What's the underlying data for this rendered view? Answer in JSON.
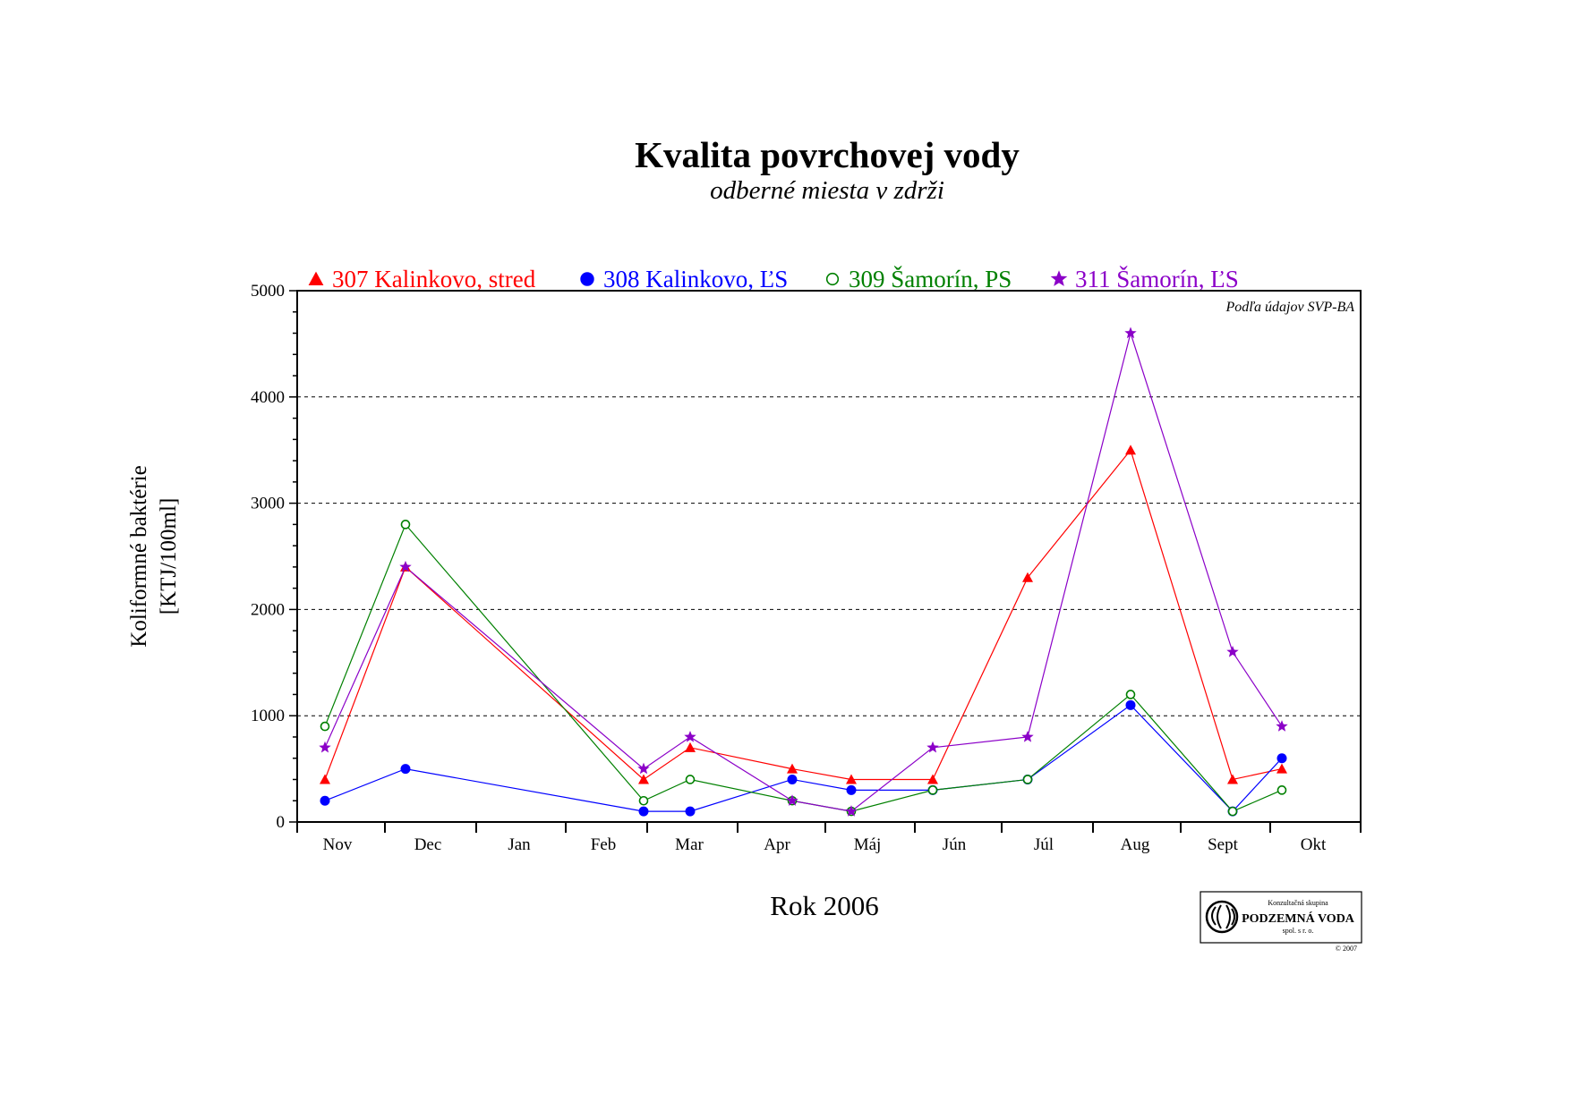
{
  "chart_data": {
    "type": "line",
    "title": "Kvalita povrchovej vody",
    "subtitle": "odberné miesta v zdrži",
    "xlabel": "Rok 2006",
    "ylabel_line1": "Koliformné baktérie",
    "ylabel_line2": "[KTJ/100ml]",
    "categories": [
      "Nov",
      "Dec",
      "Jan",
      "Feb",
      "Mar",
      "Apr",
      "Máj",
      "Jún",
      "Júl",
      "Aug",
      "Sept",
      "Okt"
    ],
    "ylim": [
      0,
      5000
    ],
    "yticks": [
      0,
      1000,
      2000,
      3000,
      4000,
      5000
    ],
    "grid": "horizontal dashed at 1000, 2000, 3000, 4000",
    "legend_position": "top",
    "annotation": "Podľa údajov SVP-BA",
    "series": [
      {
        "name": "307 Kalinkovo, stred",
        "color": "#ff0000",
        "marker": "triangle",
        "points": [
          {
            "x": "Nov",
            "y": 400
          },
          {
            "x": "Dec",
            "y": 2400
          },
          {
            "x": "Feb",
            "y": 400
          },
          {
            "x": "Mar",
            "y": 700
          },
          {
            "x": "Apr",
            "y": 500
          },
          {
            "x": "Máj",
            "y": 400
          },
          {
            "x": "Jún",
            "y": 400
          },
          {
            "x": "Júl",
            "y": 2300
          },
          {
            "x": "Aug",
            "y": 3500
          },
          {
            "x": "Sept",
            "y": 400
          },
          {
            "x": "Okt",
            "y": 500
          }
        ]
      },
      {
        "name": "308 Kalinkovo, ĽS",
        "color": "#0000ff",
        "marker": "filled-circle",
        "points": [
          {
            "x": "Nov",
            "y": 200
          },
          {
            "x": "Dec",
            "y": 500
          },
          {
            "x": "Feb",
            "y": 100
          },
          {
            "x": "Mar",
            "y": 100
          },
          {
            "x": "Apr",
            "y": 400
          },
          {
            "x": "Máj",
            "y": 300
          },
          {
            "x": "Jún",
            "y": 300
          },
          {
            "x": "Júl",
            "y": 400
          },
          {
            "x": "Aug",
            "y": 1100
          },
          {
            "x": "Sept",
            "y": 100
          },
          {
            "x": "Okt",
            "y": 600
          }
        ]
      },
      {
        "name": "309 Šamorín, PS",
        "color": "#008000",
        "marker": "open-circle",
        "points": [
          {
            "x": "Nov",
            "y": 900
          },
          {
            "x": "Dec",
            "y": 2800
          },
          {
            "x": "Feb",
            "y": 200
          },
          {
            "x": "Mar",
            "y": 400
          },
          {
            "x": "Apr",
            "y": 200
          },
          {
            "x": "Máj",
            "y": 100
          },
          {
            "x": "Jún",
            "y": 300
          },
          {
            "x": "Júl",
            "y": 400
          },
          {
            "x": "Aug",
            "y": 1200
          },
          {
            "x": "Sept",
            "y": 100
          },
          {
            "x": "Okt",
            "y": 300
          }
        ]
      },
      {
        "name": "311 Šamorín, ĽS",
        "color": "#8b00c8",
        "marker": "star",
        "points": [
          {
            "x": "Nov",
            "y": 700
          },
          {
            "x": "Dec",
            "y": 2400
          },
          {
            "x": "Feb",
            "y": 500
          },
          {
            "x": "Mar",
            "y": 800
          },
          {
            "x": "Apr",
            "y": 200
          },
          {
            "x": "Máj",
            "y": 100
          },
          {
            "x": "Jún",
            "y": 700
          },
          {
            "x": "Júl",
            "y": 800
          },
          {
            "x": "Aug",
            "y": 4600
          },
          {
            "x": "Sept",
            "y": 1600
          },
          {
            "x": "Okt",
            "y": 900
          }
        ]
      }
    ]
  },
  "logo": {
    "line1": "Konzultačná skupina",
    "line2": "PODZEMNÁ VODA",
    "line3": "spol. s r. o.",
    "copyright": "© 2007",
    "icon": "spiral-logo-icon"
  }
}
